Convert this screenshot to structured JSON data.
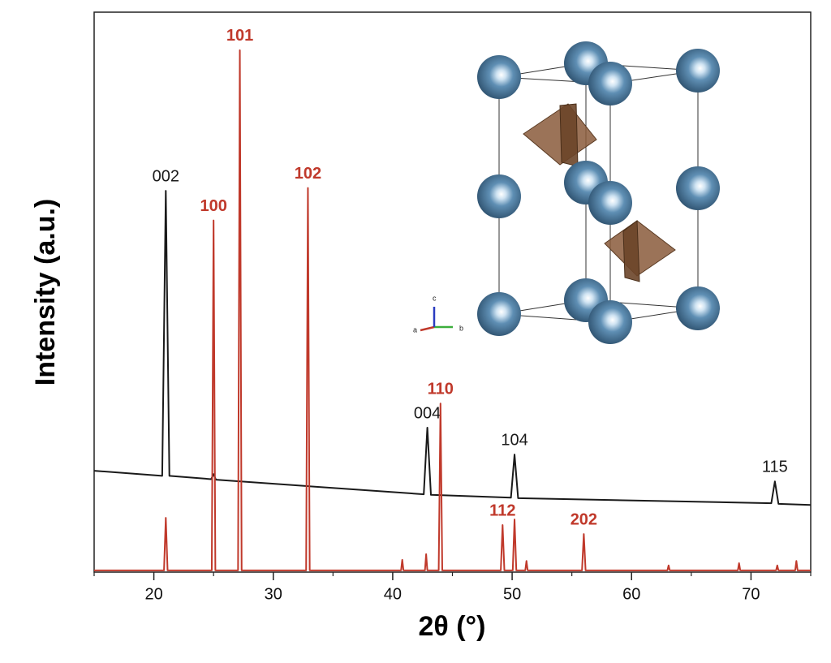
{
  "chart_data": {
    "type": "line",
    "xlabel": "2θ (°)",
    "ylabel": "Intensity (a.u.)",
    "xlim": [
      15,
      75
    ],
    "xticks": [
      20,
      30,
      40,
      50,
      60,
      70
    ],
    "xminorticks": [
      15,
      25,
      35,
      45,
      55,
      65,
      75
    ],
    "ylim": [
      0,
      100
    ],
    "yticks": [],
    "grid": false,
    "series": [
      {
        "color": "#1a1a1a",
        "x": [
          15,
          20.7,
          21.0,
          21.3,
          24.8,
          25.0,
          25.2,
          42.6,
          42.9,
          43.2,
          49.9,
          50.2,
          50.5,
          71.7,
          72.0,
          72.3,
          75
        ],
        "values": [
          18.1,
          17.2,
          68.1,
          17.2,
          16.6,
          17.5,
          16.5,
          13.9,
          25.8,
          13.8,
          13.3,
          21.0,
          13.2,
          12.3,
          16.2,
          12.2,
          12.0
        ],
        "peak_labels": [
          {
            "label": "002",
            "x": 21.0
          },
          {
            "label": "004",
            "x": 42.9
          },
          {
            "label": "104",
            "x": 50.2
          },
          {
            "label": "115",
            "x": 72.0
          }
        ]
      },
      {
        "color": "#c0392b",
        "x": [
          15,
          20.85,
          21.0,
          21.15,
          24.85,
          25.0,
          25.15,
          27.05,
          27.2,
          27.35,
          32.75,
          32.9,
          33.05,
          40.7,
          40.8,
          40.9,
          42.7,
          42.8,
          42.9,
          43.85,
          44.0,
          44.15,
          49.05,
          49.2,
          49.35,
          50.05,
          50.2,
          50.35,
          51.1,
          51.2,
          51.3,
          55.85,
          56.0,
          56.15,
          63.0,
          63.1,
          63.2,
          68.9,
          69.0,
          69.1,
          72.1,
          72.2,
          72.3,
          73.7,
          73.8,
          73.9,
          75
        ],
        "values": [
          0.3,
          0.3,
          9.7,
          0.3,
          0.3,
          62.8,
          0.3,
          0.3,
          93.2,
          0.3,
          0.3,
          68.6,
          0.3,
          0.3,
          2.2,
          0.3,
          0.3,
          3.2,
          0.3,
          0.3,
          30.1,
          0.3,
          0.3,
          8.4,
          0.3,
          0.3,
          9.4,
          0.3,
          0.3,
          2.0,
          0.3,
          0.3,
          6.8,
          0.3,
          0.3,
          1.2,
          0.3,
          0.3,
          1.6,
          0.3,
          0.3,
          1.2,
          0.3,
          0.3,
          2.0,
          0.3,
          0.3
        ],
        "peak_labels": [
          {
            "label": "100",
            "x": 25.0
          },
          {
            "label": "101",
            "x": 27.2
          },
          {
            "label": "102",
            "x": 32.9
          },
          {
            "label": "110",
            "x": 44.0
          },
          {
            "label": "112",
            "x": 49.2
          },
          {
            "label": "202",
            "x": 56.0
          }
        ]
      }
    ],
    "inset": {
      "axis_labels": [
        "a",
        "b",
        "c"
      ]
    }
  }
}
